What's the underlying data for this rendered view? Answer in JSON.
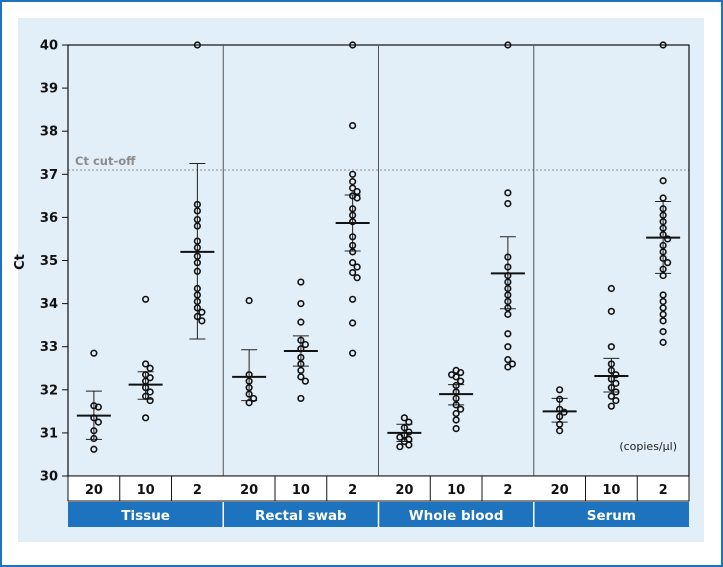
{
  "chart_data": {
    "type": "scatter",
    "ylabel": "Ct",
    "ylim": [
      30,
      40
    ],
    "yticks": [
      30,
      31,
      32,
      33,
      34,
      35,
      36,
      37,
      38,
      39,
      40
    ],
    "cutoff": {
      "value": 37.1,
      "label": "Ct cut-off"
    },
    "unit_label": "(copies/µl)",
    "colors": {
      "header_bar": "#1e73be",
      "panel_bg": "#e2eef8",
      "frame": "#1e73be"
    },
    "groups": [
      {
        "name": "Tissue",
        "series": [
          {
            "dose": "20",
            "mean": 31.4,
            "sd_low": 30.85,
            "sd_high": 31.97,
            "values": [
              32.85,
              31.63,
              31.6,
              31.35,
              31.25,
              31.05,
              30.87,
              30.62
            ]
          },
          {
            "dose": "10",
            "mean": 32.12,
            "sd_low": 31.78,
            "sd_high": 32.42,
            "values": [
              34.1,
              32.6,
              32.5,
              32.35,
              32.28,
              32.2,
              32.05,
              31.95,
              31.85,
              31.75,
              31.35
            ]
          },
          {
            "dose": "2",
            "mean": 35.2,
            "sd_low": 33.18,
            "sd_high": 37.25,
            "values": [
              40.0,
              36.3,
              36.15,
              35.95,
              35.8,
              35.45,
              35.3,
              35.1,
              34.95,
              34.75,
              34.35,
              34.2,
              34.05,
              33.9,
              33.8,
              33.7,
              33.6
            ]
          }
        ]
      },
      {
        "name": "Rectal swab",
        "series": [
          {
            "dose": "20",
            "mean": 32.3,
            "sd_low": 31.75,
            "sd_high": 32.93,
            "values": [
              34.07,
              32.35,
              32.2,
              32.05,
              31.9,
              31.8,
              31.7
            ]
          },
          {
            "dose": "10",
            "mean": 32.9,
            "sd_low": 32.55,
            "sd_high": 33.25,
            "values": [
              34.5,
              34.0,
              33.57,
              33.15,
              33.05,
              32.95,
              32.75,
              32.6,
              32.45,
              32.3,
              32.2,
              31.8
            ]
          },
          {
            "dose": "2",
            "mean": 35.87,
            "sd_low": 35.22,
            "sd_high": 36.52,
            "values": [
              40.0,
              38.13,
              37.0,
              36.83,
              36.68,
              36.6,
              36.5,
              36.45,
              36.2,
              36.05,
              35.9,
              35.55,
              35.35,
              35.2,
              34.95,
              34.85,
              34.72,
              34.6,
              34.1,
              33.55,
              32.85
            ]
          }
        ]
      },
      {
        "name": "Whole blood",
        "series": [
          {
            "dose": "20",
            "mean": 31.0,
            "sd_low": 30.8,
            "sd_high": 31.2,
            "values": [
              31.35,
              31.25,
              31.12,
              31.02,
              30.95,
              30.9,
              30.85,
              30.8,
              30.72,
              30.68
            ]
          },
          {
            "dose": "10",
            "mean": 31.9,
            "sd_low": 31.65,
            "sd_high": 32.12,
            "values": [
              32.45,
              32.4,
              32.35,
              32.3,
              32.2,
              32.1,
              31.95,
              31.8,
              31.65,
              31.55,
              31.45,
              31.3,
              31.1
            ]
          },
          {
            "dose": "2",
            "mean": 34.7,
            "sd_low": 33.88,
            "sd_high": 35.55,
            "values": [
              40.0,
              36.57,
              36.32,
              35.08,
              34.85,
              34.65,
              34.5,
              34.35,
              34.2,
              34.05,
              33.9,
              33.75,
              33.3,
              33.0,
              32.7,
              32.6,
              32.53
            ]
          }
        ]
      },
      {
        "name": "Serum",
        "series": [
          {
            "dose": "20",
            "mean": 31.5,
            "sd_low": 31.25,
            "sd_high": 31.8,
            "values": [
              32.0,
              31.78,
              31.55,
              31.48,
              31.38,
              31.2,
              31.05
            ]
          },
          {
            "dose": "10",
            "mean": 32.32,
            "sd_low": 31.95,
            "sd_high": 32.73,
            "values": [
              34.35,
              33.82,
              33.0,
              32.6,
              32.45,
              32.35,
              32.25,
              32.15,
              32.05,
              31.95,
              31.85,
              31.75,
              31.62
            ]
          },
          {
            "dose": "2",
            "mean": 35.53,
            "sd_low": 34.7,
            "sd_high": 36.37,
            "values": [
              40.0,
              36.85,
              36.45,
              36.2,
              36.05,
              35.9,
              35.75,
              35.6,
              35.5,
              35.35,
              35.2,
              35.05,
              34.95,
              34.8,
              34.65,
              34.2,
              34.05,
              33.9,
              33.75,
              33.6,
              33.35,
              33.1
            ]
          }
        ]
      }
    ]
  }
}
